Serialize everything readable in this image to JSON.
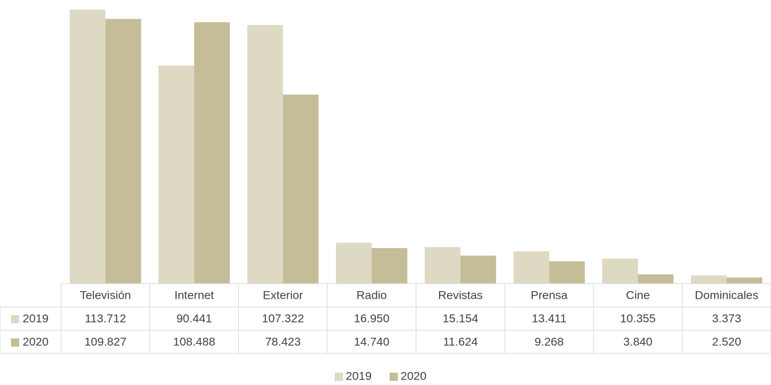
{
  "chart_data": {
    "type": "bar",
    "categories": [
      "Televisión",
      "Internet",
      "Exterior",
      "Radio",
      "Revistas",
      "Prensa",
      "Cine",
      "Dominicales"
    ],
    "series": [
      {
        "name": "2019",
        "color": "#ddd9c3",
        "values": [
          113712,
          90441,
          107322,
          16950,
          15154,
          13411,
          10355,
          3373
        ],
        "value_labels": [
          "113.712",
          "90.441",
          "107.322",
          "16.950",
          "15.154",
          "13.411",
          "10.355",
          "3.373"
        ]
      },
      {
        "name": "2020",
        "color": "#c4bd97",
        "values": [
          109827,
          108488,
          78423,
          14740,
          11624,
          9268,
          3840,
          2520
        ],
        "value_labels": [
          "109.827",
          "108.488",
          "78.423",
          "14.740",
          "11.624",
          "9.268",
          "3.840",
          "2.520"
        ]
      }
    ],
    "legend": "bottom"
  }
}
